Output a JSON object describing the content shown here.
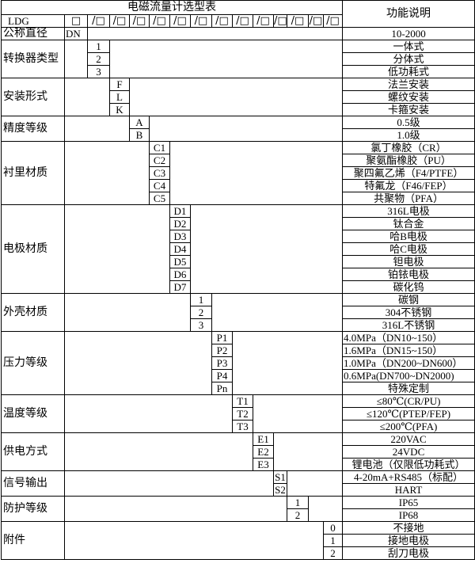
{
  "header": {
    "title": "电磁流量计选型表",
    "function_header": "功能说明",
    "model_prefix": "LDG",
    "first_box": "□",
    "slot_boxes": [
      "/□",
      "/□",
      "/□",
      "/□",
      "/□",
      "/□",
      "/□",
      "/□",
      "/□",
      "/□",
      "/□",
      "/□",
      "/□"
    ],
    "nominal_label": "公称直径",
    "nominal_code": "DN",
    "nominal_desc": "10-2000"
  },
  "categories": [
    {
      "label": "转换器类型",
      "col": 2,
      "options": [
        {
          "code": "1",
          "desc": "一体式"
        },
        {
          "code": "2",
          "desc": "分体式"
        },
        {
          "code": "3",
          "desc": "低功耗式"
        }
      ]
    },
    {
      "label": "安装形式",
      "col": 3,
      "options": [
        {
          "code": "F",
          "desc": "法兰安装"
        },
        {
          "code": "L",
          "desc": "螺纹安装"
        },
        {
          "code": "K",
          "desc": "卡箍安装"
        }
      ]
    },
    {
      "label": "精度等级",
      "col": 4,
      "options": [
        {
          "code": "A",
          "desc": "0.5级"
        },
        {
          "code": "B",
          "desc": "1.0级"
        }
      ]
    },
    {
      "label": "衬里材质",
      "col": 5,
      "options": [
        {
          "code": "C1",
          "desc": "氯丁橡胶（CR）"
        },
        {
          "code": "C2",
          "desc": "聚氨酯橡胶（PU）"
        },
        {
          "code": "C3",
          "desc": "聚四氟乙烯（F4/PTFE）"
        },
        {
          "code": "C4",
          "desc": "特氟龙（F46/FEP）"
        },
        {
          "code": "C5",
          "desc": "共聚物（PFA）"
        }
      ]
    },
    {
      "label": "电极材质",
      "col": 6,
      "options": [
        {
          "code": "D1",
          "desc": "316L电极"
        },
        {
          "code": "D2",
          "desc": "钛合金"
        },
        {
          "code": "D3",
          "desc": "哈B电极"
        },
        {
          "code": "D4",
          "desc": "哈C电极"
        },
        {
          "code": "D5",
          "desc": "钽电极"
        },
        {
          "code": "D6",
          "desc": "铂铱电极"
        },
        {
          "code": "D7",
          "desc": "碳化钨"
        }
      ]
    },
    {
      "label": "外壳材质",
      "col": 7,
      "options": [
        {
          "code": "1",
          "desc": "碳钢"
        },
        {
          "code": "2",
          "desc": "304不锈钢"
        },
        {
          "code": "3",
          "desc": "316L不锈钢"
        }
      ]
    },
    {
      "label": "压力等级",
      "col": 8,
      "options": [
        {
          "code": "P1",
          "desc": "4.0MPa（DN10~150）",
          "left": true
        },
        {
          "code": "P2",
          "desc": "1.6MPa（DN15~150）",
          "left": true
        },
        {
          "code": "P3",
          "desc": "1.0MPa（DN200~DN600）",
          "left": true
        },
        {
          "code": "P4",
          "desc": "0.6MPa(DN700~DN2000)",
          "left": true
        },
        {
          "code": "Pn",
          "desc": "特殊定制"
        }
      ]
    },
    {
      "label": "温度等级",
      "col": 9,
      "options": [
        {
          "code": "T1",
          "desc": "≤80℃(CR/PU)"
        },
        {
          "code": "T2",
          "desc": "≤120℃(PTEP/FEP)"
        },
        {
          "code": "T3",
          "desc": "≤200℃(PFA)"
        }
      ]
    },
    {
      "label": "供电方式",
      "col": 10,
      "options": [
        {
          "code": "E1",
          "desc": "220VAC"
        },
        {
          "code": "E2",
          "desc": "24VDC"
        },
        {
          "code": "E3",
          "desc": "锂电池（仅限低功耗式）"
        }
      ]
    },
    {
      "label": "信号输出",
      "col": 11,
      "options": [
        {
          "code": "S1",
          "desc": "4-20mA+RS485（标配）"
        },
        {
          "code": "S2",
          "desc": "HART"
        }
      ]
    },
    {
      "label": "防护等级",
      "col": 12,
      "options": [
        {
          "code": "1",
          "desc": "IP65"
        },
        {
          "code": "2",
          "desc": "IP68"
        }
      ]
    },
    {
      "label": "附件",
      "col": 14,
      "options": [
        {
          "code": "0",
          "desc": "不接地"
        },
        {
          "code": "1",
          "desc": "接地电极"
        },
        {
          "code": "2",
          "desc": "刮刀电极"
        }
      ]
    }
  ]
}
